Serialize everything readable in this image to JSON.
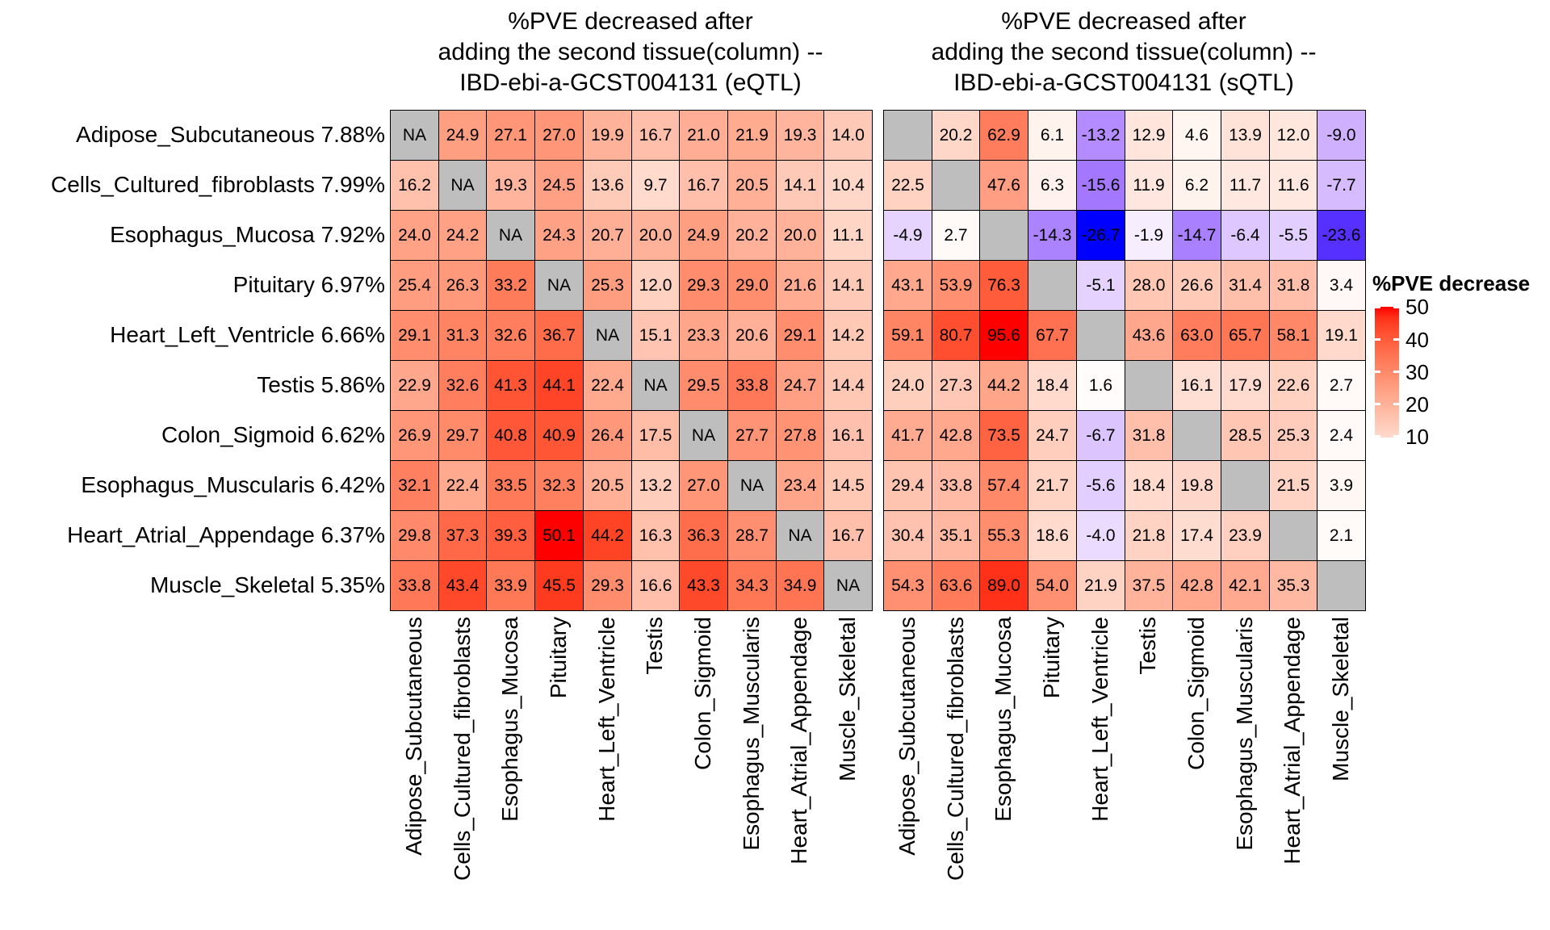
{
  "chart_data": {
    "type": "heatmap",
    "panels": [
      {
        "id": "eqtl",
        "title_lines": [
          "%PVE decreased after",
          "adding the second tissue(column) --",
          "IBD-ebi-a-GCST004131 (eQTL)"
        ],
        "na_cell_text": "NA",
        "values": [
          [
            null,
            24.9,
            27.1,
            27.0,
            19.9,
            16.7,
            21.0,
            21.9,
            19.3,
            14.0
          ],
          [
            16.2,
            null,
            19.3,
            24.5,
            13.6,
            9.7,
            16.7,
            20.5,
            14.1,
            10.4
          ],
          [
            24.0,
            24.2,
            null,
            24.3,
            20.7,
            20.0,
            24.9,
            20.2,
            20.0,
            11.1
          ],
          [
            25.4,
            26.3,
            33.2,
            null,
            25.3,
            12.0,
            29.3,
            29.0,
            21.6,
            14.1
          ],
          [
            29.1,
            31.3,
            32.6,
            36.7,
            null,
            15.1,
            23.3,
            20.6,
            29.1,
            14.2
          ],
          [
            22.9,
            32.6,
            41.3,
            44.1,
            22.4,
            null,
            29.5,
            33.8,
            24.7,
            14.4
          ],
          [
            26.9,
            29.7,
            40.8,
            40.9,
            26.4,
            17.5,
            null,
            27.7,
            27.8,
            16.1
          ],
          [
            32.1,
            22.4,
            33.5,
            32.3,
            20.5,
            13.2,
            27.0,
            null,
            23.4,
            14.5
          ],
          [
            29.8,
            37.3,
            39.3,
            50.1,
            44.2,
            16.3,
            36.3,
            28.7,
            null,
            16.7
          ],
          [
            33.8,
            43.4,
            33.9,
            45.5,
            29.3,
            16.6,
            43.3,
            34.3,
            34.9,
            null
          ]
        ]
      },
      {
        "id": "sqtl",
        "title_lines": [
          "%PVE decreased after",
          "adding the second tissue(column) --",
          "IBD-ebi-a-GCST004131 (sQTL)"
        ],
        "na_cell_text": "",
        "values": [
          [
            null,
            20.2,
            62.9,
            6.1,
            -13.2,
            12.9,
            4.6,
            13.9,
            12.0,
            -9.0
          ],
          [
            22.5,
            null,
            47.6,
            6.3,
            -15.6,
            11.9,
            6.2,
            11.7,
            11.6,
            -7.7
          ],
          [
            -4.9,
            2.7,
            null,
            -14.3,
            -26.7,
            -1.9,
            -14.7,
            -6.4,
            -5.5,
            -23.6
          ],
          [
            43.1,
            53.9,
            76.3,
            null,
            -5.1,
            28.0,
            26.6,
            31.4,
            31.8,
            3.4
          ],
          [
            59.1,
            80.7,
            95.6,
            67.7,
            null,
            43.6,
            63.0,
            65.7,
            58.1,
            19.1
          ],
          [
            24.0,
            27.3,
            44.2,
            18.4,
            1.6,
            null,
            16.1,
            17.9,
            22.6,
            2.7
          ],
          [
            41.7,
            42.8,
            73.5,
            24.7,
            -6.7,
            31.8,
            null,
            28.5,
            25.3,
            2.4
          ],
          [
            29.4,
            33.8,
            57.4,
            21.7,
            -5.6,
            18.4,
            19.8,
            null,
            21.5,
            3.9
          ],
          [
            30.4,
            35.1,
            55.3,
            18.6,
            -4.0,
            21.8,
            17.4,
            23.9,
            null,
            2.1
          ],
          [
            54.3,
            63.6,
            89.0,
            54.0,
            21.9,
            37.5,
            42.8,
            42.1,
            35.3,
            null
          ]
        ]
      }
    ],
    "rows": [
      {
        "tissue": "Adipose_Subcutaneous",
        "first_pve": "7.88%"
      },
      {
        "tissue": "Cells_Cultured_fibroblasts",
        "first_pve": "7.99%"
      },
      {
        "tissue": "Esophagus_Mucosa",
        "first_pve": "7.92%"
      },
      {
        "tissue": "Pituitary",
        "first_pve": "6.97%"
      },
      {
        "tissue": "Heart_Left_Ventricle",
        "first_pve": "6.66%"
      },
      {
        "tissue": "Testis",
        "first_pve": "5.86%"
      },
      {
        "tissue": "Colon_Sigmoid",
        "first_pve": "6.62%"
      },
      {
        "tissue": "Esophagus_Muscularis",
        "first_pve": "6.42%"
      },
      {
        "tissue": "Heart_Atrial_Appendage",
        "first_pve": "6.37%"
      },
      {
        "tissue": "Muscle_Skeletal",
        "first_pve": "5.35%"
      }
    ],
    "columns": [
      "Adipose_Subcutaneous",
      "Cells_Cultured_fibroblasts",
      "Esophagus_Mucosa",
      "Pituitary",
      "Heart_Left_Ventricle",
      "Testis",
      "Colon_Sigmoid",
      "Esophagus_Muscularis",
      "Heart_Atrial_Appendage",
      "Muscle_Skeletal"
    ],
    "legend": {
      "title": "%PVE decrease",
      "tick_labels": [
        "50",
        "40",
        "30",
        "20",
        "10"
      ],
      "tick_values": [
        50,
        40,
        30,
        20,
        10
      ],
      "range": [
        9.7,
        50.1
      ],
      "position": "right"
    },
    "colors": {
      "na": "#BEBEBE",
      "positive_high": "#FF0000",
      "negative_low": "#0000FF",
      "mid": "#FFFFFF",
      "border": "#000000",
      "text": "#000000"
    }
  }
}
